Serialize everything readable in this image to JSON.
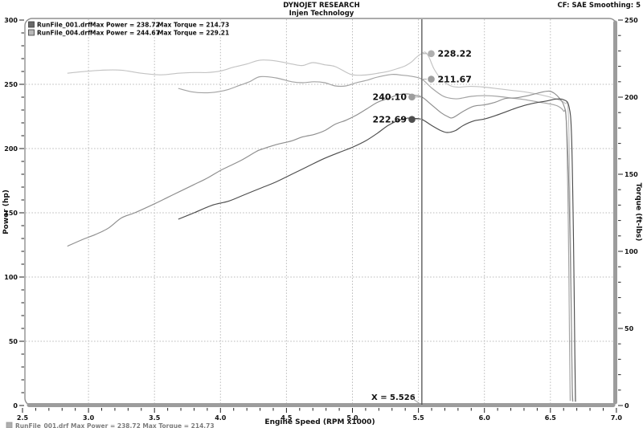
{
  "header": {
    "title": "DYNOJET RESEARCH",
    "subtitle": "Injen Technology",
    "correction": "CF: SAE  Smoothing: 5"
  },
  "legend": {
    "rows": [
      {
        "file": "RunFile_001.drf",
        "power": "Max Power = 238.72",
        "torque": "Max Torque = 214.73",
        "swatch": "#686868"
      },
      {
        "file": "RunFile_004.drf",
        "power": "Max Power = 244.67",
        "torque": "Max Torque = 229.21",
        "swatch": "#b8b8b8"
      }
    ]
  },
  "footer_cutoff": {
    "swatch": "#6f6f6f",
    "text": "RunFile_001.drf Max Power = 238.72    Max Torque = 214.73"
  },
  "chart_data": {
    "type": "line",
    "title": "DYNOJET RESEARCH - Injen Technology",
    "xlabel": "Engine Speed (RPM x1000)",
    "ylabel_left": "Power (hp)",
    "ylabel_right": "Torque (ft-lbs)",
    "x_range": [
      2.5,
      7.0
    ],
    "power_range": [
      0,
      300
    ],
    "torque_range": [
      0,
      250
    ],
    "x_major_ticks": [
      2.5,
      3.0,
      3.5,
      4.0,
      4.5,
      5.0,
      5.5,
      6.0,
      6.5,
      7.0
    ],
    "x_minor_step": 0.1,
    "power_major_ticks": [
      0,
      50,
      100,
      150,
      200,
      250,
      300
    ],
    "torque_major_ticks": [
      0,
      50,
      100,
      150,
      200,
      250
    ],
    "y_minor_step": 10,
    "grid_x": [
      3.0,
      3.5,
      4.0,
      4.5,
      5.0,
      5.5,
      6.0,
      6.5
    ],
    "grid_power": [
      50,
      100,
      150,
      200,
      250
    ],
    "grid_on": true,
    "cursor": {
      "x": 5.526,
      "label": "X = 5.526"
    },
    "cursor_markers": [
      {
        "value": "228.22",
        "run": "RunFile_004.drf",
        "axis": "torque",
        "y": 228.22,
        "side": "right",
        "color": "#b0b0b0"
      },
      {
        "value": "211.67",
        "run": "RunFile_001.drf",
        "axis": "torque",
        "y": 211.67,
        "side": "right",
        "color": "#9e9e9e"
      },
      {
        "value": "240.10",
        "run": "RunFile_004.drf",
        "axis": "power",
        "y": 240.1,
        "side": "left",
        "color": "#9e9e9e"
      },
      {
        "value": "222.69",
        "run": "RunFile_001.drf",
        "axis": "power",
        "y": 222.69,
        "side": "left",
        "color": "#4d4d4d"
      }
    ],
    "series": [
      {
        "id": "run004-torque",
        "run": "RunFile_004.drf",
        "channel": "torque",
        "max": 229.21,
        "color": "#c3c3c3",
        "points": [
          [
            2.84,
            215.5
          ],
          [
            2.95,
            216.5
          ],
          [
            3.1,
            217.5
          ],
          [
            3.25,
            217.5
          ],
          [
            3.4,
            215.5
          ],
          [
            3.55,
            214.5
          ],
          [
            3.68,
            215.5
          ],
          [
            3.8,
            216
          ],
          [
            3.9,
            216
          ],
          [
            4.0,
            217
          ],
          [
            4.1,
            219.5
          ],
          [
            4.2,
            221.5
          ],
          [
            4.3,
            224
          ],
          [
            4.42,
            223.5
          ],
          [
            4.54,
            221.5
          ],
          [
            4.62,
            220.5
          ],
          [
            4.7,
            222.4
          ],
          [
            4.79,
            221
          ],
          [
            4.87,
            219.8
          ],
          [
            4.98,
            215
          ],
          [
            5.05,
            214.2
          ],
          [
            5.12,
            214.6
          ],
          [
            5.2,
            215.6
          ],
          [
            5.27,
            216.7
          ],
          [
            5.34,
            218.5
          ],
          [
            5.4,
            220.3
          ],
          [
            5.45,
            223
          ],
          [
            5.48,
            225.5
          ],
          [
            5.51,
            227.5
          ],
          [
            5.526,
            228.22
          ],
          [
            5.55,
            229.21
          ],
          [
            5.58,
            226
          ],
          [
            5.62,
            218
          ],
          [
            5.68,
            211
          ],
          [
            5.74,
            207.5
          ],
          [
            5.8,
            206.5
          ],
          [
            5.9,
            207
          ],
          [
            6.0,
            206.5
          ],
          [
            6.1,
            205.5
          ],
          [
            6.2,
            204.5
          ],
          [
            6.3,
            203.5
          ],
          [
            6.4,
            202
          ],
          [
            6.5,
            200
          ],
          [
            6.57,
            198
          ],
          [
            6.61,
            196
          ],
          [
            6.635,
            190
          ],
          [
            6.65,
            130
          ],
          [
            6.66,
            50
          ],
          [
            6.665,
            3
          ]
        ]
      },
      {
        "id": "run001-torque",
        "run": "RunFile_001.drf",
        "channel": "torque",
        "max": 214.73,
        "color": "#a3a3a3",
        "points": [
          [
            3.68,
            205.7
          ],
          [
            3.78,
            203.5
          ],
          [
            3.88,
            202.8
          ],
          [
            3.98,
            203.5
          ],
          [
            4.06,
            205
          ],
          [
            4.14,
            207.5
          ],
          [
            4.22,
            210
          ],
          [
            4.3,
            213.3
          ],
          [
            4.42,
            212.5
          ],
          [
            4.54,
            210
          ],
          [
            4.62,
            209.4
          ],
          [
            4.71,
            210
          ],
          [
            4.79,
            209.4
          ],
          [
            4.87,
            207.3
          ],
          [
            4.95,
            207.3
          ],
          [
            5.03,
            209.4
          ],
          [
            5.11,
            211
          ],
          [
            5.19,
            213
          ],
          [
            5.3,
            214.73
          ],
          [
            5.38,
            214.2
          ],
          [
            5.45,
            213.5
          ],
          [
            5.526,
            211.67
          ],
          [
            5.6,
            206
          ],
          [
            5.68,
            201
          ],
          [
            5.74,
            199.3
          ],
          [
            5.8,
            199
          ],
          [
            5.9,
            200.5
          ],
          [
            6.0,
            201
          ],
          [
            6.1,
            200.5
          ],
          [
            6.2,
            199.5
          ],
          [
            6.3,
            198.5
          ],
          [
            6.4,
            197
          ],
          [
            6.5,
            195.5
          ],
          [
            6.56,
            194
          ],
          [
            6.6,
            191
          ],
          [
            6.62,
            185
          ],
          [
            6.635,
            120
          ],
          [
            6.645,
            40
          ],
          [
            6.65,
            3
          ]
        ]
      },
      {
        "id": "run004-power",
        "run": "RunFile_004.drf",
        "channel": "power",
        "max": 244.67,
        "color": "#8e8e8e",
        "points": [
          [
            2.84,
            124
          ],
          [
            2.95,
            129
          ],
          [
            3.05,
            133
          ],
          [
            3.15,
            138
          ],
          [
            3.25,
            146
          ],
          [
            3.35,
            150
          ],
          [
            3.5,
            157
          ],
          [
            3.6,
            162
          ],
          [
            3.7,
            167
          ],
          [
            3.8,
            172
          ],
          [
            3.9,
            177
          ],
          [
            4.0,
            183
          ],
          [
            4.06,
            186
          ],
          [
            4.16,
            191
          ],
          [
            4.26,
            197
          ],
          [
            4.3,
            199
          ],
          [
            4.42,
            203
          ],
          [
            4.54,
            206
          ],
          [
            4.62,
            209
          ],
          [
            4.71,
            211
          ],
          [
            4.79,
            214
          ],
          [
            4.87,
            219
          ],
          [
            4.95,
            222
          ],
          [
            5.03,
            226
          ],
          [
            5.11,
            231
          ],
          [
            5.19,
            236
          ],
          [
            5.27,
            239
          ],
          [
            5.35,
            242
          ],
          [
            5.42,
            242.5
          ],
          [
            5.47,
            241.5
          ],
          [
            5.526,
            240.1
          ],
          [
            5.6,
            234
          ],
          [
            5.67,
            228
          ],
          [
            5.72,
            225
          ],
          [
            5.76,
            224
          ],
          [
            5.84,
            229
          ],
          [
            5.92,
            233
          ],
          [
            6.0,
            234
          ],
          [
            6.08,
            236
          ],
          [
            6.16,
            239
          ],
          [
            6.24,
            239.5
          ],
          [
            6.32,
            241
          ],
          [
            6.38,
            242.5
          ],
          [
            6.44,
            244
          ],
          [
            6.49,
            244.67
          ],
          [
            6.53,
            243
          ],
          [
            6.57,
            239
          ],
          [
            6.6,
            234
          ],
          [
            6.62,
            222
          ],
          [
            6.64,
            170
          ],
          [
            6.655,
            90
          ],
          [
            6.665,
            20
          ],
          [
            6.67,
            3
          ]
        ]
      },
      {
        "id": "run001-power",
        "run": "RunFile_001.drf",
        "channel": "power",
        "max": 238.72,
        "color": "#4d4d4d",
        "points": [
          [
            3.68,
            145
          ],
          [
            3.8,
            150
          ],
          [
            3.94,
            156
          ],
          [
            4.06,
            159
          ],
          [
            4.18,
            164
          ],
          [
            4.3,
            169
          ],
          [
            4.42,
            174
          ],
          [
            4.54,
            180
          ],
          [
            4.66,
            186
          ],
          [
            4.78,
            192
          ],
          [
            4.9,
            197
          ],
          [
            5.0,
            201
          ],
          [
            5.1,
            206
          ],
          [
            5.19,
            212
          ],
          [
            5.27,
            218
          ],
          [
            5.35,
            222
          ],
          [
            5.42,
            223.7
          ],
          [
            5.47,
            223.5
          ],
          [
            5.526,
            222.69
          ],
          [
            5.6,
            218
          ],
          [
            5.67,
            214
          ],
          [
            5.72,
            212.5
          ],
          [
            5.78,
            214
          ],
          [
            5.84,
            218
          ],
          [
            5.92,
            221.5
          ],
          [
            6.0,
            223
          ],
          [
            6.08,
            225.5
          ],
          [
            6.16,
            228.5
          ],
          [
            6.24,
            231.5
          ],
          [
            6.32,
            234
          ],
          [
            6.4,
            235.8
          ],
          [
            6.47,
            237
          ],
          [
            6.54,
            238.5
          ],
          [
            6.6,
            238
          ],
          [
            6.64,
            233
          ],
          [
            6.66,
            210
          ],
          [
            6.675,
            130
          ],
          [
            6.685,
            40
          ],
          [
            6.69,
            3
          ]
        ]
      }
    ]
  }
}
